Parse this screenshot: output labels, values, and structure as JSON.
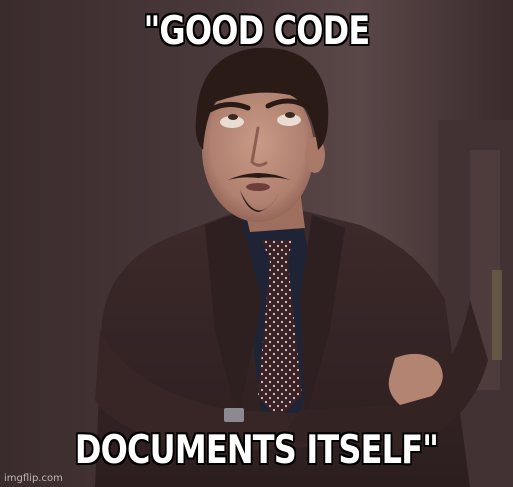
{
  "meme": {
    "top_text": "\"GOOD CODE",
    "bottom_text": "DOCUMENTS ITSELF\"",
    "watermark": "imgflip.com"
  },
  "photo": {
    "subject": "man-rolling-eyes-arms-crossed",
    "colors": {
      "background": "#4a393a",
      "suit": "#3a2727",
      "shirt": "#1d2233",
      "tie": "#3b2226",
      "skin": "#b98a78",
      "hair": "#2a1a16"
    }
  }
}
